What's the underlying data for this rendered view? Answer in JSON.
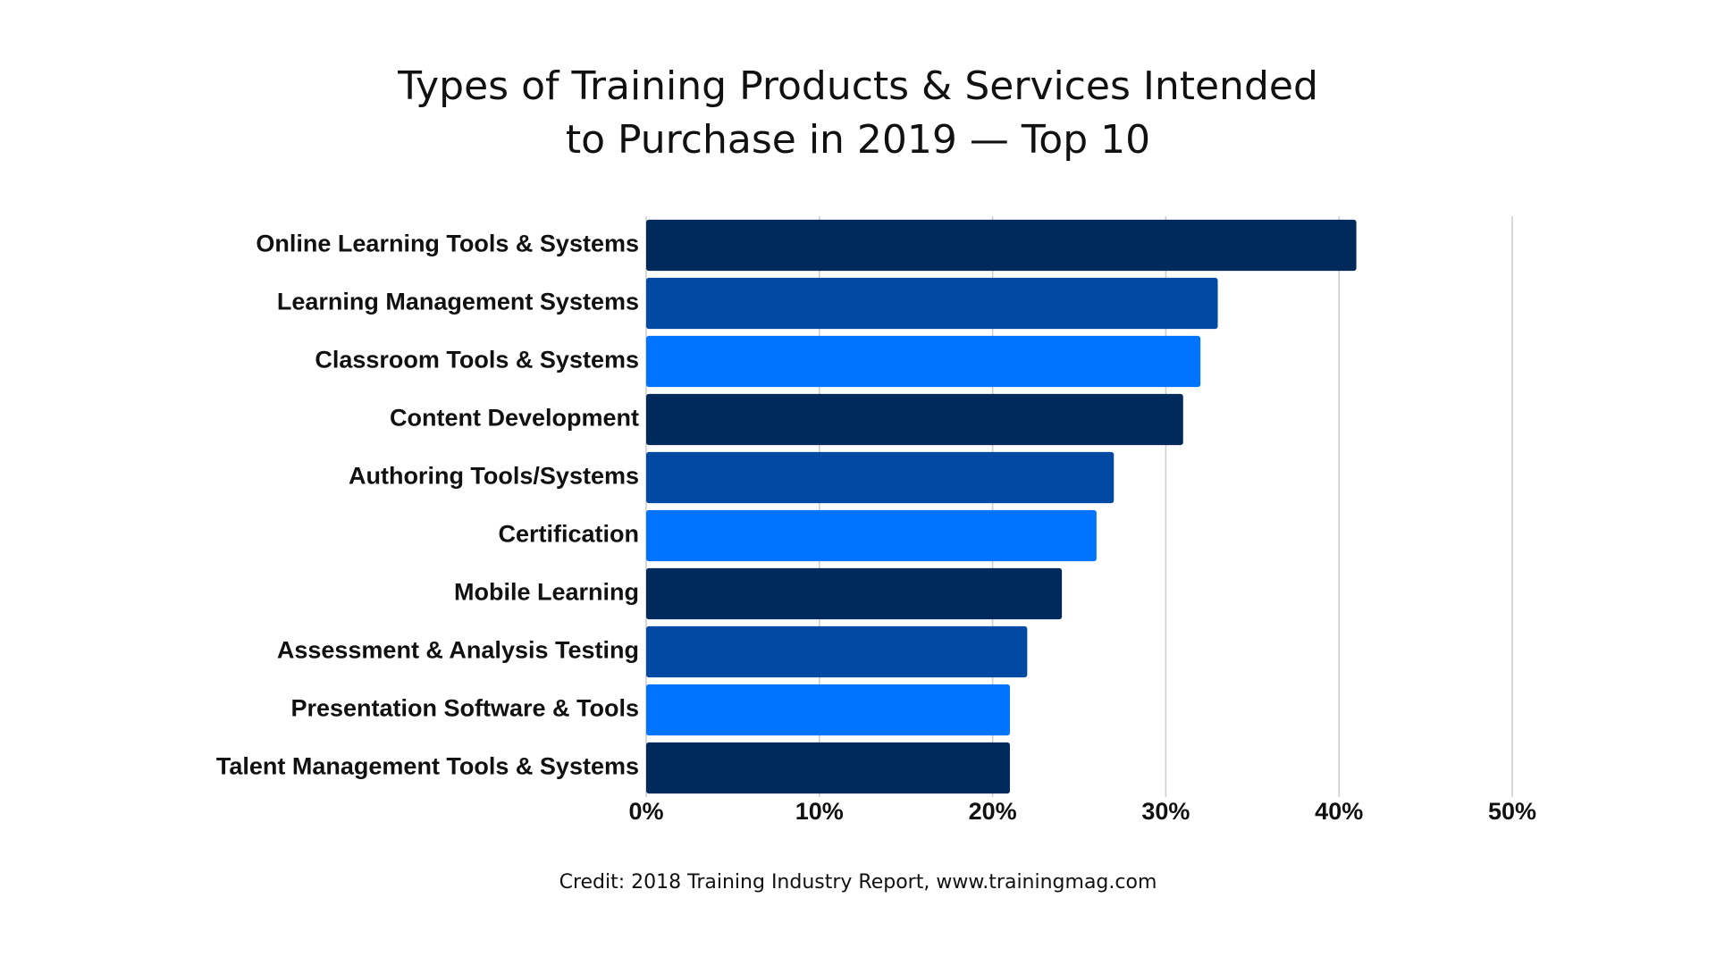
{
  "chart_data": {
    "type": "bar",
    "orientation": "horizontal",
    "title": [
      "Types of Training Products & Services Intended",
      "to Purchase in 2019 — Top 10"
    ],
    "categories": [
      "Online Learning Tools & Systems",
      "Learning Management Systems",
      "Classroom Tools & Systems",
      "Content Development",
      "Authoring Tools/Systems",
      "Certification",
      "Mobile Learning",
      "Assessment & Analysis Testing",
      "Presentation Software & Tools",
      "Talent Management Tools & Systems"
    ],
    "values": [
      41,
      33,
      32,
      31,
      27,
      26,
      24,
      22,
      21,
      21
    ],
    "colors": [
      "#00295c",
      "#004aa3",
      "#0073ff",
      "#00295c",
      "#004aa3",
      "#0073ff",
      "#00295c",
      "#004aa3",
      "#0073ff",
      "#00295c"
    ],
    "xlim": [
      0,
      50
    ],
    "xticks": [
      {
        "value": 0,
        "label": "0%"
      },
      {
        "value": 10,
        "label": "10%"
      },
      {
        "value": 20,
        "label": "20%"
      },
      {
        "value": 30,
        "label": "30%"
      },
      {
        "value": 40,
        "label": "40%"
      },
      {
        "value": 50,
        "label": "50%"
      }
    ],
    "grid": true,
    "credit": "Credit: 2018 Training Industry Report, www.trainingmag.com"
  }
}
